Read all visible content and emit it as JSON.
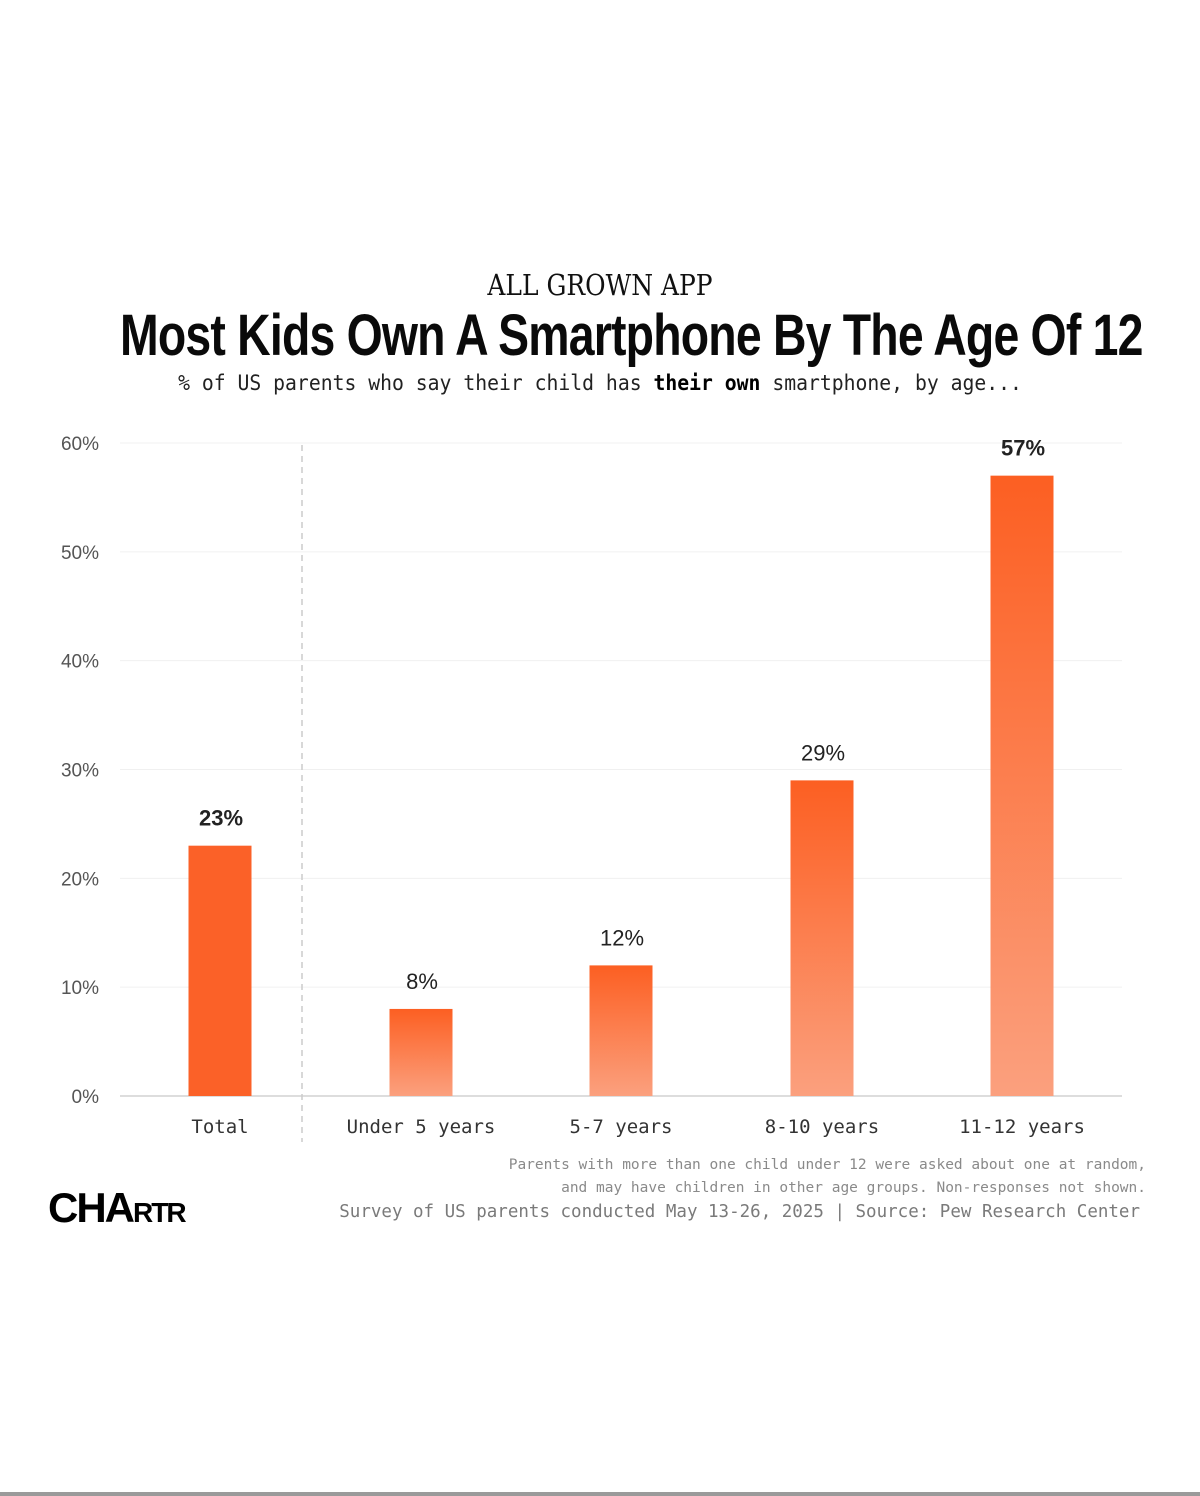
{
  "header": {
    "kicker": "ALL GROWN APP",
    "title": "Most Kids Own A Smartphone By The Age Of 12",
    "subtitle_parts": {
      "before": "% of US parents who say their child has ",
      "emphasis": "their own",
      "after": " smartphone, by age..."
    }
  },
  "footer": {
    "note_line1": "Parents with more than one child under 12 were asked about one at random,",
    "note_line2": "and may have children in other age groups. Non-responses not shown.",
    "source": "Survey of US parents conducted May 13-26, 2025 | Source: Pew Research Center",
    "logo_big": "CHA",
    "logo_small": "RTR"
  },
  "colors": {
    "bar_top": "#fc5f22",
    "bar_bottom": "#fba07e",
    "total_bar": "#fb6128",
    "grid": "#f0f0f0",
    "axis": "#dddddd",
    "divider": "#cccccc"
  },
  "chart_data": {
    "type": "bar",
    "title": "Most Kids Own A Smartphone By The Age Of 12",
    "subtitle": "% of US parents who say their child has their own smartphone, by age...",
    "xlabel": "",
    "ylabel": "",
    "categories": [
      "Total",
      "Under 5 years",
      "5-7 years",
      "8-10 years",
      "11-12 years"
    ],
    "values": [
      23,
      8,
      12,
      29,
      57
    ],
    "value_labels": [
      "23%",
      "8%",
      "12%",
      "29%",
      "57%"
    ],
    "bold_labels": [
      true,
      false,
      false,
      false,
      true
    ],
    "ylim": [
      0,
      60
    ],
    "yticks": [
      0,
      10,
      20,
      30,
      40,
      50,
      60
    ],
    "ytick_labels": [
      "0%",
      "10%",
      "20%",
      "30%",
      "40%",
      "50%",
      "60%"
    ],
    "grid": true,
    "divider_after_category": "Total",
    "legend": "none"
  }
}
